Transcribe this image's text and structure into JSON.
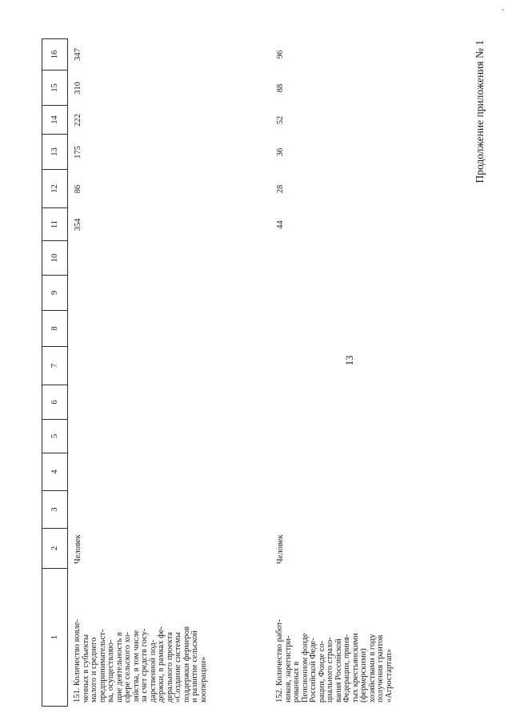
{
  "page": {
    "continuation_note": "Продолжение приложения № 1",
    "page_number": "13",
    "corner_mark": "."
  },
  "table": {
    "column_numbers": [
      "1",
      "2",
      "3",
      "4",
      "5",
      "6",
      "7",
      "8",
      "9",
      "10",
      "11",
      "12",
      "13",
      "14",
      "15",
      "16"
    ],
    "rows": [
      {
        "row_number": "151",
        "indicator_lines": [
          "151. Количество вовле-",
          "ченных в субъекты",
          "малого и среднего",
          "предпринимательст-",
          "ва, осуществляю-",
          "щие деятельность в",
          "сфере сельского хо-",
          "зяйства, в том числе",
          "за счет средств госу-",
          "дарственной под-",
          "держки, в рамках фе-",
          "дерального проекта",
          "«Создание системы",
          "поддержки фермеров",
          "и развитие сельской",
          "кооперации»"
        ],
        "unit": "Человек",
        "values": {
          "c11": "354",
          "c12": "86",
          "c13": "175",
          "c14": "222",
          "c15": "310",
          "c16": "347"
        }
      },
      {
        "row_number": "152",
        "indicator_lines": [
          "152. Количество работ-",
          "ников, зарегистри-",
          "рованных в",
          "Пенсионном фонде",
          "Российской Феде-",
          "рации, Фонде со-",
          "циального страхо-",
          "вания Российской",
          "Федерации, приня-",
          "тых крестьянскими",
          "(фермерскими)",
          "хозяйствами в году",
          "получения грантов",
          "«Агростартап»"
        ],
        "unit": "Человек",
        "values": {
          "c11": "44",
          "c12": "28",
          "c13": "36",
          "c14": "52",
          "c15": "88",
          "c16": "96"
        }
      }
    ]
  }
}
